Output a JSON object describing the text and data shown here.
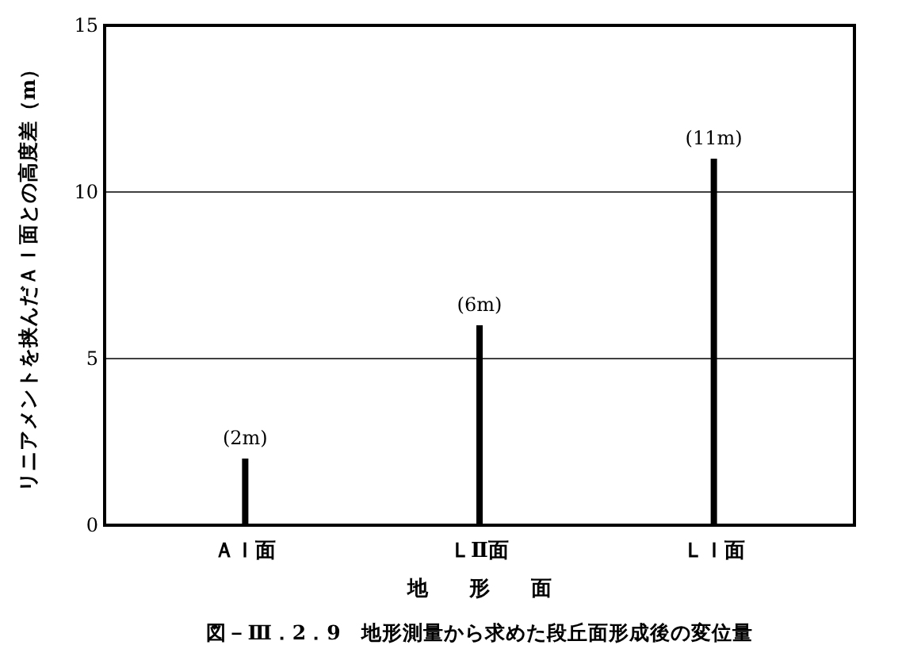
{
  "chart_data": {
    "type": "bar",
    "title": "図－Ⅲ．2．9　地形測量から求めた段丘面形成後の変位量",
    "xlabel": "地　　形　　面",
    "ylabel": "リニアメントを挟んだＡＩ面との高度差（m）",
    "categories": [
      "ＡＩ面",
      "ＬⅡ面",
      "ＬＩ面"
    ],
    "values": [
      2,
      6,
      11
    ],
    "value_labels": [
      "(2m)",
      "(6m)",
      "(11m)"
    ],
    "color": "#000000",
    "ylim": [
      0,
      15
    ],
    "yticks": [
      0,
      5,
      10,
      15
    ],
    "grid": "y"
  }
}
